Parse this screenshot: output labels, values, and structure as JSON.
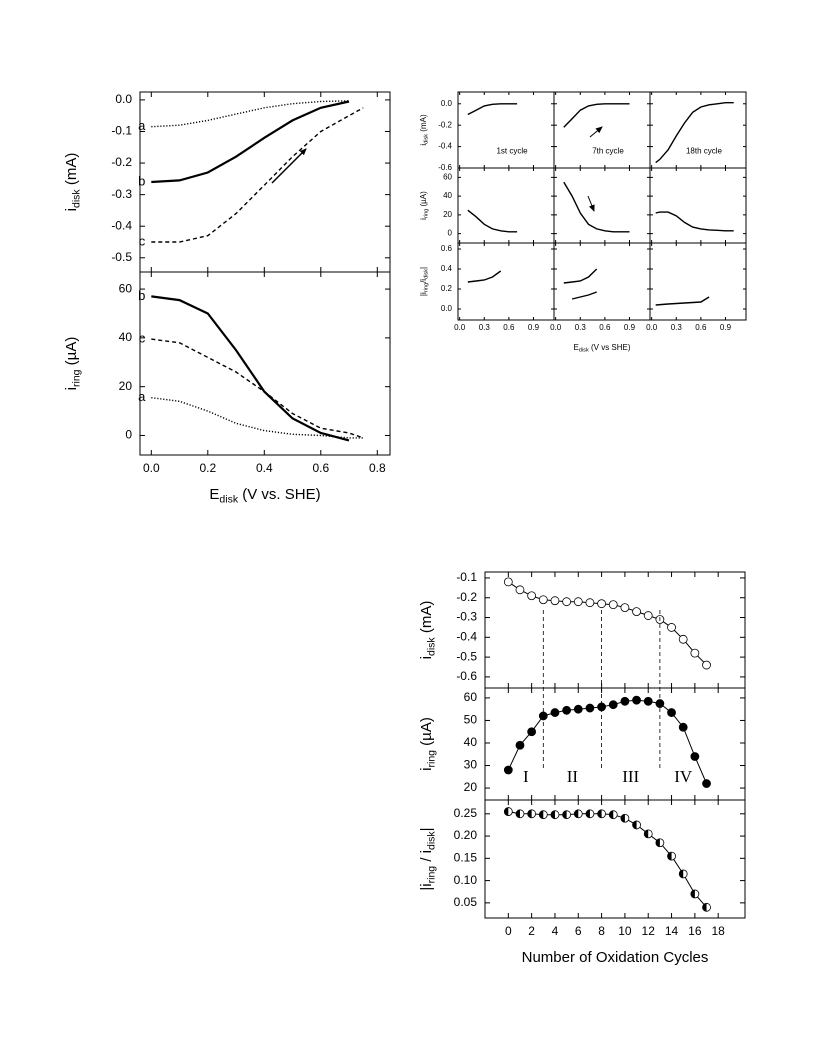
{
  "chart_data": [
    {
      "type": "line",
      "xlim": [
        -0.04,
        0.845
      ],
      "ylim": [
        -0.545,
        0.025
      ],
      "yticks": [
        {
          "value": 0,
          "label": "0.0"
        },
        -0.1,
        -0.2,
        -0.3,
        -0.4,
        -0.5
      ],
      "ylabel": [
        "i",
        "disk",
        " (mA)"
      ],
      "series": [
        {
          "name": "a",
          "dash": "dotted",
          "x": [
            0,
            0.1,
            0.2,
            0.3,
            0.4,
            0.5,
            0.6,
            0.7
          ],
          "values": [
            -0.085,
            -0.08,
            -0.065,
            -0.045,
            -0.025,
            -0.012,
            -0.005,
            -0.003
          ]
        },
        {
          "name": "b",
          "dash": "solid",
          "x": [
            0,
            0.1,
            0.2,
            0.3,
            0.4,
            0.5,
            0.6,
            0.7
          ],
          "values": [
            -0.26,
            -0.255,
            -0.23,
            -0.18,
            -0.12,
            -0.065,
            -0.025,
            -0.005
          ]
        },
        {
          "name": "c",
          "dash": "dashed",
          "x": [
            0,
            0.1,
            0.2,
            0.3,
            0.4,
            0.5,
            0.6,
            0.7,
            0.75
          ],
          "values": [
            -0.45,
            -0.45,
            -0.43,
            -0.36,
            -0.27,
            -0.18,
            -0.1,
            -0.05,
            -0.025
          ]
        }
      ]
    },
    {
      "type": "line",
      "xlim": [
        -0.04,
        0.845
      ],
      "ylim": [
        -8,
        67
      ],
      "xticks": [
        {
          "value": 0,
          "label": "0.0"
        },
        0.2,
        0.4,
        0.6,
        0.8
      ],
      "yticks": [
        0,
        20,
        40,
        60
      ],
      "xlabel": [
        "E",
        "disk",
        " (V vs. SHE)"
      ],
      "ylabel": [
        "i",
        "ring",
        " (µA)"
      ],
      "series": [
        {
          "name": "a",
          "dash": "dotted",
          "x": [
            0,
            0.1,
            0.2,
            0.3,
            0.4,
            0.5,
            0.6,
            0.7,
            0.75
          ],
          "values": [
            15.5,
            14,
            10,
            5,
            2,
            0.5,
            0,
            -1,
            -1
          ]
        },
        {
          "name": "b",
          "dash": "solid",
          "x": [
            0,
            0.1,
            0.2,
            0.3,
            0.4,
            0.5,
            0.6,
            0.7
          ],
          "values": [
            57,
            55.5,
            50,
            35,
            18,
            7,
            1,
            -2
          ]
        },
        {
          "name": "c",
          "dash": "dashed",
          "x": [
            0,
            0.1,
            0.2,
            0.3,
            0.4,
            0.5,
            0.6,
            0.7,
            0.75
          ],
          "values": [
            39.5,
            38,
            32,
            26,
            18,
            9,
            3,
            1,
            -1
          ]
        }
      ]
    },
    {
      "type": "line",
      "xlim": [
        -0.02,
        1.15
      ],
      "ylim": [
        -0.6,
        0.11
      ],
      "yticks": [
        {
          "value": 0,
          "label": "0.0"
        },
        -0.2,
        -0.4,
        -0.6
      ],
      "ylabel": [
        "i",
        "disk",
        " (mA)"
      ],
      "annotations": [
        "1st cycle"
      ],
      "series": [
        {
          "dash": "solid",
          "x": [
            0.1,
            0.2,
            0.3,
            0.4,
            0.5,
            0.6,
            0.7
          ],
          "values": [
            -0.1,
            -0.06,
            -0.02,
            -0.005,
            0,
            0,
            0
          ]
        }
      ]
    },
    {
      "type": "line",
      "xlim": [
        -0.02,
        1.15
      ],
      "ylim": [
        -0.6,
        0.11
      ],
      "annotations": [
        "7th cycle"
      ],
      "series": [
        {
          "dash": "solid",
          "x": [
            0.1,
            0.2,
            0.3,
            0.4,
            0.5,
            0.6,
            0.7,
            0.8,
            0.9
          ],
          "values": [
            -0.22,
            -0.14,
            -0.06,
            -0.02,
            -0.005,
            0,
            0,
            0,
            0
          ]
        }
      ]
    },
    {
      "type": "line",
      "xlim": [
        -0.02,
        1.15
      ],
      "ylim": [
        -0.6,
        0.11
      ],
      "annotations": [
        "18th cycle"
      ],
      "series": [
        {
          "dash": "solid",
          "x": [
            0.05,
            0.1,
            0.2,
            0.3,
            0.4,
            0.5,
            0.6,
            0.7,
            0.8,
            0.9,
            1.0
          ],
          "values": [
            -0.55,
            -0.52,
            -0.43,
            -0.3,
            -0.18,
            -0.08,
            -0.03,
            -0.01,
            0,
            0.01,
            0.01
          ]
        }
      ]
    },
    {
      "type": "line",
      "xlim": [
        -0.02,
        1.15
      ],
      "ylim": [
        -10,
        70
      ],
      "yticks": [
        0,
        20,
        40,
        60
      ],
      "ylabel": [
        "i",
        "ring",
        " (µA)"
      ],
      "series": [
        {
          "dash": "solid",
          "x": [
            0.1,
            0.2,
            0.3,
            0.4,
            0.5,
            0.6,
            0.7
          ],
          "values": [
            25,
            18,
            10,
            5,
            3,
            2,
            2
          ]
        }
      ]
    },
    {
      "type": "line",
      "xlim": [
        -0.02,
        1.15
      ],
      "ylim": [
        -10,
        70
      ],
      "series": [
        {
          "dash": "solid",
          "x": [
            0.1,
            0.2,
            0.3,
            0.4,
            0.5,
            0.6,
            0.7,
            0.8,
            0.9
          ],
          "values": [
            55,
            40,
            22,
            10,
            5,
            3,
            2,
            2,
            2
          ]
        }
      ]
    },
    {
      "type": "line",
      "xlim": [
        -0.02,
        1.15
      ],
      "ylim": [
        -10,
        70
      ],
      "series": [
        {
          "dash": "solid",
          "x": [
            0.05,
            0.1,
            0.2,
            0.3,
            0.4,
            0.5,
            0.6,
            0.7,
            0.8,
            0.9,
            1.0
          ],
          "values": [
            22,
            23,
            23,
            19,
            12,
            7,
            5,
            4,
            3.5,
            3,
            3
          ]
        }
      ]
    },
    {
      "type": "line",
      "xlim": [
        -0.02,
        1.15
      ],
      "ylim": [
        -0.11,
        0.66
      ],
      "xticks": [
        {
          "value": 0,
          "label": "0.0"
        },
        0.3,
        0.6,
        0.9
      ],
      "yticks": [
        {
          "value": 0,
          "label": "0.0"
        },
        0.2,
        0.4,
        0.6
      ],
      "ylabel": [
        "|i",
        "ring",
        "/i",
        "disk",
        "|"
      ],
      "series": [
        {
          "dash": "solid",
          "x": [
            0.1,
            0.2,
            0.3,
            0.4,
            0.5
          ],
          "values": [
            0.27,
            0.28,
            0.29,
            0.32,
            0.38
          ]
        }
      ]
    },
    {
      "type": "line",
      "xlim": [
        -0.02,
        1.15
      ],
      "ylim": [
        -0.11,
        0.66
      ],
      "xticks": [
        {
          "value": 0,
          "label": "0.0"
        },
        0.3,
        0.6,
        0.9
      ],
      "xlabel": [
        "E",
        "disk",
        " (V vs SHE)"
      ],
      "series": [
        {
          "dash": "solid",
          "x": [
            0.1,
            0.2,
            0.3,
            0.4,
            0.5
          ],
          "values": [
            0.26,
            0.27,
            0.28,
            0.32,
            0.4
          ]
        },
        {
          "dash": "solid",
          "x": [
            0.2,
            0.3,
            0.4,
            0.5
          ],
          "values": [
            0.1,
            0.12,
            0.14,
            0.17
          ]
        }
      ]
    },
    {
      "type": "line",
      "xlim": [
        -0.02,
        1.15
      ],
      "ylim": [
        -0.11,
        0.66
      ],
      "xticks": [
        {
          "value": 0,
          "label": "0.0"
        },
        0.3,
        0.6,
        0.9
      ],
      "series": [
        {
          "dash": "solid",
          "x": [
            0.05,
            0.2,
            0.4,
            0.6,
            0.7
          ],
          "values": [
            0.04,
            0.05,
            0.06,
            0.07,
            0.12
          ]
        }
      ]
    },
    {
      "type": "line",
      "xlim": [
        -2,
        20.3
      ],
      "ylim": [
        -0.656,
        -0.07
      ],
      "yticks": [
        -0.1,
        -0.2,
        -0.3,
        -0.4,
        -0.5,
        -0.6
      ],
      "ylabel": [
        "i",
        "disk",
        " (mA)"
      ],
      "series": [
        {
          "marker": "open",
          "dash": "solid",
          "x": [
            0,
            1,
            2,
            3,
            4,
            5,
            6,
            7,
            8,
            9,
            10,
            11,
            12,
            13,
            14,
            15,
            16,
            17
          ],
          "values": [
            -0.12,
            -0.16,
            -0.19,
            -0.21,
            -0.215,
            -0.22,
            -0.22,
            -0.225,
            -0.23,
            -0.235,
            -0.25,
            -0.27,
            -0.29,
            -0.31,
            -0.35,
            -0.41,
            -0.48,
            -0.54
          ]
        }
      ]
    },
    {
      "type": "line",
      "xlim": [
        -2,
        20.3
      ],
      "ylim": [
        14.7,
        64.4
      ],
      "yticks": [
        20,
        30,
        40,
        50,
        60
      ],
      "ylabel": [
        "i",
        "ring",
        " (µA)"
      ],
      "boundaries": [
        3,
        8,
        13
      ],
      "regions": [
        "I",
        "II",
        "III",
        "IV"
      ],
      "series": [
        {
          "marker": "filled",
          "dash": "solid",
          "x": [
            0,
            1,
            2,
            3,
            4,
            5,
            6,
            7,
            8,
            9,
            10,
            11,
            12,
            13,
            14,
            15,
            16,
            17
          ],
          "values": [
            28,
            39,
            45,
            52,
            53.5,
            54.5,
            55,
            55.5,
            56,
            57,
            58.5,
            59,
            58.5,
            57.5,
            53.5,
            47,
            34,
            22
          ]
        }
      ]
    },
    {
      "type": "line",
      "xlim": [
        -2,
        20.3
      ],
      "ylim": [
        0.016,
        0.281
      ],
      "xticks": [
        0,
        2,
        4,
        6,
        8,
        10,
        12,
        14,
        16,
        18
      ],
      "yticks": [
        0.05,
        {
          "value": 0.1,
          "label": "0.10"
        },
        0.15,
        {
          "value": 0.2,
          "label": "0.20"
        },
        0.25
      ],
      "xlabel": [
        "Number of Oxidation Cycles"
      ],
      "ylabel": [
        "|i",
        "ring",
        " / i",
        "disk",
        "|"
      ],
      "series": [
        {
          "marker": "half",
          "dash": "solid",
          "x": [
            0,
            1,
            2,
            3,
            4,
            5,
            6,
            7,
            8,
            9,
            10,
            11,
            12,
            13,
            14,
            15,
            16,
            17
          ],
          "values": [
            0.255,
            0.25,
            0.25,
            0.248,
            0.248,
            0.248,
            0.25,
            0.25,
            0.25,
            0.248,
            0.24,
            0.225,
            0.205,
            0.185,
            0.155,
            0.115,
            0.07,
            0.04
          ]
        }
      ]
    }
  ]
}
